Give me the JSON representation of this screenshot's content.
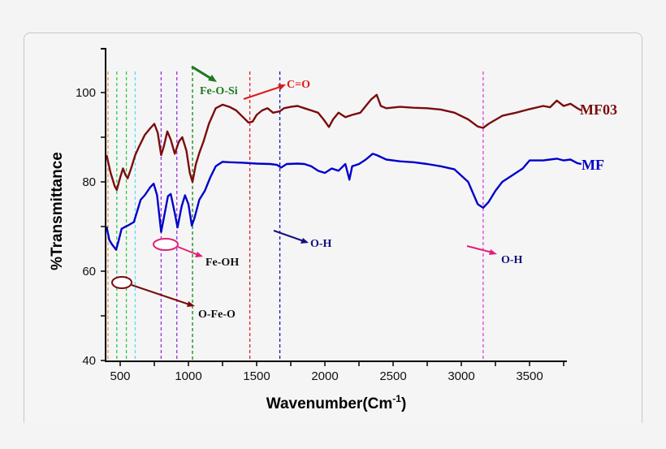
{
  "chart_data": {
    "type": "line",
    "title": "",
    "xlabel": "Wavenumber(Cm-1)",
    "xlabel_main": "Wavenumber(Cm",
    "xlabel_sup": "-1",
    "xlabel_close": ")",
    "ylabel": "%Transmittance",
    "xlim": [
      390,
      3890
    ],
    "ylim": [
      40,
      110
    ],
    "x_ticks": [
      500,
      1000,
      1500,
      2000,
      2500,
      3000,
      3500
    ],
    "y_ticks": [
      40,
      60,
      80,
      100
    ],
    "grid": false,
    "legend_position": "right, inline at curve ends",
    "series": [
      {
        "name": "MF03",
        "color": "#7b0c0c",
        "points": [
          [
            400,
            86
          ],
          [
            430,
            82
          ],
          [
            460,
            79
          ],
          [
            475,
            78.2
          ],
          [
            500,
            81
          ],
          [
            520,
            83
          ],
          [
            540,
            81.5
          ],
          [
            555,
            80.8
          ],
          [
            580,
            83
          ],
          [
            610,
            86
          ],
          [
            640,
            88
          ],
          [
            680,
            90.5
          ],
          [
            720,
            92
          ],
          [
            750,
            93
          ],
          [
            775,
            91
          ],
          [
            800,
            86
          ],
          [
            820,
            88
          ],
          [
            845,
            91.3
          ],
          [
            870,
            89.5
          ],
          [
            900,
            86.3
          ],
          [
            930,
            89
          ],
          [
            955,
            90
          ],
          [
            985,
            87
          ],
          [
            1010,
            82
          ],
          [
            1030,
            80
          ],
          [
            1055,
            84
          ],
          [
            1080,
            86.5
          ],
          [
            1110,
            89
          ],
          [
            1150,
            93
          ],
          [
            1200,
            96.5
          ],
          [
            1250,
            97.3
          ],
          [
            1300,
            96.8
          ],
          [
            1350,
            96
          ],
          [
            1400,
            94.5
          ],
          [
            1440,
            93.3
          ],
          [
            1470,
            93.5
          ],
          [
            1500,
            95
          ],
          [
            1540,
            96
          ],
          [
            1580,
            96.5
          ],
          [
            1620,
            95.5
          ],
          [
            1670,
            95.8
          ],
          [
            1700,
            96.5
          ],
          [
            1750,
            96.8
          ],
          [
            1800,
            97
          ],
          [
            1850,
            96.5
          ],
          [
            1900,
            96
          ],
          [
            1950,
            95.5
          ],
          [
            1990,
            94
          ],
          [
            2030,
            92.3
          ],
          [
            2060,
            94
          ],
          [
            2100,
            95.5
          ],
          [
            2150,
            94.5
          ],
          [
            2200,
            95
          ],
          [
            2260,
            95.5
          ],
          [
            2300,
            97
          ],
          [
            2340,
            98.5
          ],
          [
            2380,
            99.5
          ],
          [
            2410,
            97
          ],
          [
            2450,
            96.5
          ],
          [
            2550,
            96.8
          ],
          [
            2650,
            96.6
          ],
          [
            2750,
            96.5
          ],
          [
            2850,
            96.2
          ],
          [
            2950,
            95.5
          ],
          [
            3050,
            94
          ],
          [
            3120,
            92.4
          ],
          [
            3160,
            92.1
          ],
          [
            3200,
            93
          ],
          [
            3300,
            94.8
          ],
          [
            3400,
            95.5
          ],
          [
            3500,
            96.3
          ],
          [
            3600,
            97
          ],
          [
            3650,
            96.7
          ],
          [
            3700,
            98.2
          ],
          [
            3750,
            97
          ],
          [
            3800,
            97.5
          ],
          [
            3850,
            96.5
          ],
          [
            3880,
            96
          ]
        ]
      },
      {
        "name": "MF",
        "color": "#0000cc",
        "points": [
          [
            400,
            70
          ],
          [
            420,
            67
          ],
          [
            440,
            66
          ],
          [
            470,
            64.8
          ],
          [
            490,
            67
          ],
          [
            510,
            69.5
          ],
          [
            540,
            70
          ],
          [
            560,
            70.3
          ],
          [
            600,
            71
          ],
          [
            620,
            73
          ],
          [
            650,
            76
          ],
          [
            680,
            77
          ],
          [
            720,
            78.8
          ],
          [
            745,
            79.6
          ],
          [
            770,
            77
          ],
          [
            800,
            68.8
          ],
          [
            820,
            72
          ],
          [
            850,
            76.8
          ],
          [
            870,
            77.3
          ],
          [
            900,
            73
          ],
          [
            920,
            69.8
          ],
          [
            950,
            74.5
          ],
          [
            975,
            77
          ],
          [
            1000,
            75
          ],
          [
            1025,
            70.2
          ],
          [
            1045,
            72
          ],
          [
            1080,
            76
          ],
          [
            1120,
            78
          ],
          [
            1160,
            81
          ],
          [
            1200,
            83.5
          ],
          [
            1250,
            84.5
          ],
          [
            1300,
            84.4
          ],
          [
            1400,
            84.3
          ],
          [
            1500,
            84.1
          ],
          [
            1600,
            84
          ],
          [
            1650,
            83.8
          ],
          [
            1680,
            83.2
          ],
          [
            1720,
            84
          ],
          [
            1800,
            84.1
          ],
          [
            1850,
            84
          ],
          [
            1900,
            83.5
          ],
          [
            1950,
            82.5
          ],
          [
            2000,
            82
          ],
          [
            2050,
            83
          ],
          [
            2100,
            82.5
          ],
          [
            2150,
            84
          ],
          [
            2180,
            80.5
          ],
          [
            2200,
            83.5
          ],
          [
            2250,
            84
          ],
          [
            2300,
            85
          ],
          [
            2350,
            86.3
          ],
          [
            2380,
            86
          ],
          [
            2450,
            85
          ],
          [
            2550,
            84.6
          ],
          [
            2650,
            84.4
          ],
          [
            2750,
            84
          ],
          [
            2850,
            83.5
          ],
          [
            2950,
            82.8
          ],
          [
            3050,
            80
          ],
          [
            3120,
            75
          ],
          [
            3160,
            74.2
          ],
          [
            3200,
            75.5
          ],
          [
            3250,
            78
          ],
          [
            3300,
            80
          ],
          [
            3400,
            82
          ],
          [
            3450,
            83
          ],
          [
            3500,
            84.8
          ],
          [
            3600,
            84.8
          ],
          [
            3650,
            85
          ],
          [
            3700,
            85.2
          ],
          [
            3750,
            84.8
          ],
          [
            3800,
            85
          ],
          [
            3850,
            84.2
          ],
          [
            3880,
            84
          ]
        ]
      }
    ],
    "reference_lines": [
      {
        "x": 410,
        "color": "#f0902c"
      },
      {
        "x": 475,
        "color": "#2ecc40"
      },
      {
        "x": 545,
        "color": "#2ecc40"
      },
      {
        "x": 610,
        "color": "#55e0f0"
      },
      {
        "x": 800,
        "color": "#9b30e0"
      },
      {
        "x": 915,
        "color": "#9b30e0"
      },
      {
        "x": 1030,
        "color": "#118811"
      },
      {
        "x": 1450,
        "color": "#e02020"
      },
      {
        "x": 1670,
        "color": "#1a1aaa"
      },
      {
        "x": 3160,
        "color": "#e040e0"
      }
    ],
    "annotations": [
      {
        "text": "Fe-O-Si",
        "color": "#1d7a1d"
      },
      {
        "text": "C=O",
        "color": "#e01818"
      },
      {
        "text": "Fe-OH",
        "color": "#111111"
      },
      {
        "text": "O-H",
        "color": "#12127a",
        "position": "mid"
      },
      {
        "text": "O-H",
        "color": "#12127a",
        "position": "right"
      },
      {
        "text": "O-Fe-O",
        "color": "#111111"
      }
    ],
    "legend": [
      {
        "label": "MF03",
        "color": "#7b0c0c"
      },
      {
        "label": "MF",
        "color": "#0000cc"
      }
    ]
  }
}
